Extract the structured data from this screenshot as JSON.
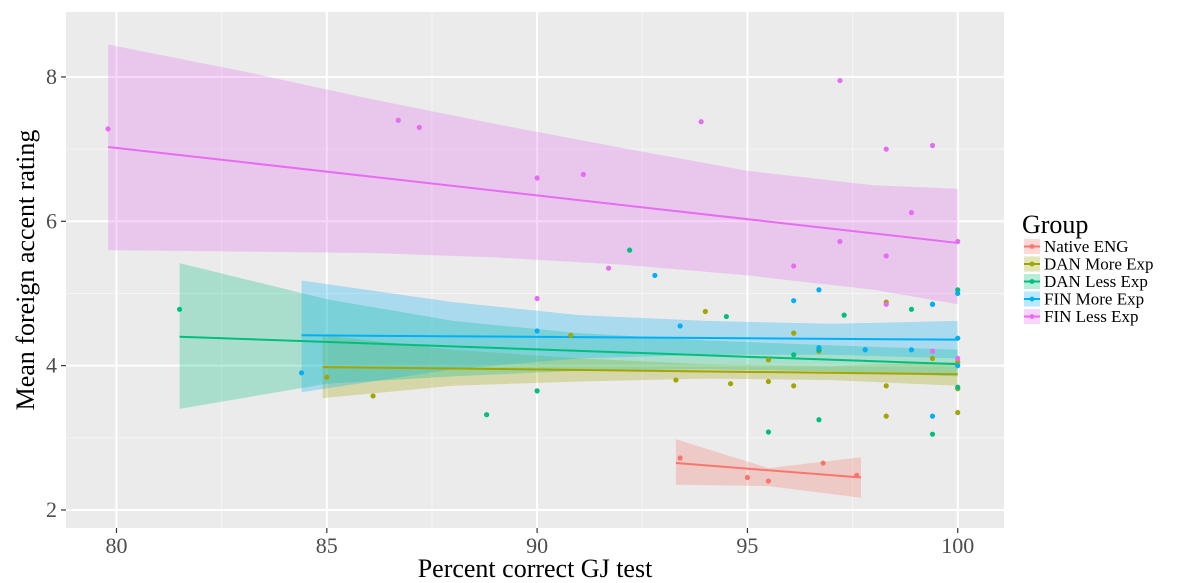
{
  "chart_data": {
    "type": "scatter",
    "xlabel": "Percent correct GJ test",
    "ylabel": "Mean foreign accent rating",
    "xlim": [
      78.8,
      101.1
    ],
    "ylim": [
      1.75,
      8.9
    ],
    "x_ticks": [
      80,
      85,
      90,
      95,
      100
    ],
    "y_ticks": [
      2,
      4,
      6,
      8
    ],
    "grid": true,
    "legend": {
      "title": "Group",
      "placement": "right"
    },
    "series": [
      {
        "name": "Native ENG",
        "color": "#F8766D",
        "fit": {
          "x": [
            93.3,
            97.7
          ],
          "y": [
            2.65,
            2.45
          ]
        },
        "band": {
          "x": [
            93.3,
            95.5,
            97.7
          ],
          "lower": [
            2.35,
            2.33,
            2.17
          ],
          "upper": [
            2.98,
            2.58,
            2.73
          ]
        },
        "points": [
          [
            93.4,
            2.72
          ],
          [
            95.0,
            2.45
          ],
          [
            95.5,
            2.4
          ],
          [
            96.8,
            2.65
          ],
          [
            97.6,
            2.48
          ]
        ]
      },
      {
        "name": "DAN More Exp",
        "color": "#A3A500",
        "fit": {
          "x": [
            84.9,
            100
          ],
          "y": [
            3.98,
            3.88
          ]
        },
        "band": {
          "x": [
            84.9,
            88,
            91,
            94,
            97,
            100
          ],
          "lower": [
            3.55,
            3.72,
            3.78,
            3.82,
            3.8,
            3.72
          ],
          "upper": [
            4.42,
            4.22,
            4.1,
            4.02,
            4.0,
            4.05
          ]
        },
        "points": [
          [
            85.0,
            3.84
          ],
          [
            86.1,
            3.58
          ],
          [
            90.8,
            4.42
          ],
          [
            93.3,
            3.8
          ],
          [
            94.0,
            4.75
          ],
          [
            94.6,
            3.75
          ],
          [
            95.5,
            3.78
          ],
          [
            95.5,
            4.08
          ],
          [
            96.1,
            3.72
          ],
          [
            96.1,
            4.45
          ],
          [
            96.7,
            4.2
          ],
          [
            98.3,
            3.3
          ],
          [
            98.3,
            3.72
          ],
          [
            98.3,
            4.88
          ],
          [
            99.4,
            4.1
          ],
          [
            100,
            3.35
          ],
          [
            100,
            3.68
          ],
          [
            100,
            4.05
          ]
        ]
      },
      {
        "name": "DAN Less Exp",
        "color": "#00BF7D",
        "fit": {
          "x": [
            81.5,
            100
          ],
          "y": [
            4.4,
            4.02
          ]
        },
        "band": {
          "x": [
            81.5,
            85,
            88,
            91,
            94,
            97,
            100
          ],
          "lower": [
            3.4,
            3.75,
            3.85,
            3.93,
            3.95,
            3.92,
            3.85
          ],
          "upper": [
            5.42,
            4.92,
            4.62,
            4.45,
            4.35,
            4.28,
            4.22
          ]
        },
        "points": [
          [
            81.5,
            4.78
          ],
          [
            88.8,
            3.32
          ],
          [
            90.0,
            3.65
          ],
          [
            92.2,
            5.6
          ],
          [
            94.5,
            4.68
          ],
          [
            95.5,
            3.08
          ],
          [
            96.1,
            4.15
          ],
          [
            96.7,
            3.25
          ],
          [
            96.7,
            4.22
          ],
          [
            97.3,
            4.7
          ],
          [
            98.9,
            4.78
          ],
          [
            99.4,
            3.05
          ],
          [
            99.4,
            4.85
          ],
          [
            100,
            3.7
          ],
          [
            100,
            5.05
          ]
        ]
      },
      {
        "name": "FIN More Exp",
        "color": "#00B0F6",
        "fit": {
          "x": [
            84.4,
            100
          ],
          "y": [
            4.42,
            4.36
          ]
        },
        "band": {
          "x": [
            84.4,
            88,
            91,
            94,
            97,
            100
          ],
          "lower": [
            3.63,
            3.95,
            4.1,
            4.15,
            4.15,
            4.1
          ],
          "upper": [
            5.18,
            4.88,
            4.7,
            4.62,
            4.58,
            4.62
          ]
        },
        "points": [
          [
            84.4,
            3.9
          ],
          [
            90.0,
            4.48
          ],
          [
            92.8,
            5.25
          ],
          [
            93.4,
            4.55
          ],
          [
            96.1,
            4.9
          ],
          [
            96.7,
            4.25
          ],
          [
            96.7,
            5.05
          ],
          [
            97.8,
            4.22
          ],
          [
            98.9,
            4.22
          ],
          [
            99.4,
            3.3
          ],
          [
            99.4,
            4.85
          ],
          [
            100,
            4.38
          ],
          [
            100,
            4.0
          ],
          [
            100,
            5.0
          ]
        ]
      },
      {
        "name": "FIN Less Exp",
        "color": "#E76BF3",
        "fit": {
          "x": [
            79.8,
            100
          ],
          "y": [
            7.03,
            5.7
          ]
        },
        "band": {
          "x": [
            79.8,
            83,
            86,
            89,
            92,
            95,
            98,
            100
          ],
          "lower": [
            5.6,
            5.58,
            5.56,
            5.5,
            5.4,
            5.25,
            5.05,
            4.85
          ],
          "upper": [
            8.45,
            8.08,
            7.7,
            7.35,
            7.02,
            6.7,
            6.5,
            6.45
          ]
        },
        "points": [
          [
            79.8,
            7.28
          ],
          [
            86.7,
            7.4
          ],
          [
            87.2,
            7.3
          ],
          [
            90.0,
            6.6
          ],
          [
            90.0,
            4.93
          ],
          [
            91.1,
            6.65
          ],
          [
            91.7,
            5.35
          ],
          [
            93.9,
            7.38
          ],
          [
            96.1,
            5.38
          ],
          [
            97.2,
            7.95
          ],
          [
            97.2,
            5.72
          ],
          [
            98.3,
            7.0
          ],
          [
            98.3,
            5.52
          ],
          [
            98.3,
            4.85
          ],
          [
            98.9,
            6.12
          ],
          [
            99.4,
            7.05
          ],
          [
            99.4,
            4.2
          ],
          [
            100,
            5.72
          ],
          [
            100,
            4.1
          ]
        ]
      }
    ]
  }
}
